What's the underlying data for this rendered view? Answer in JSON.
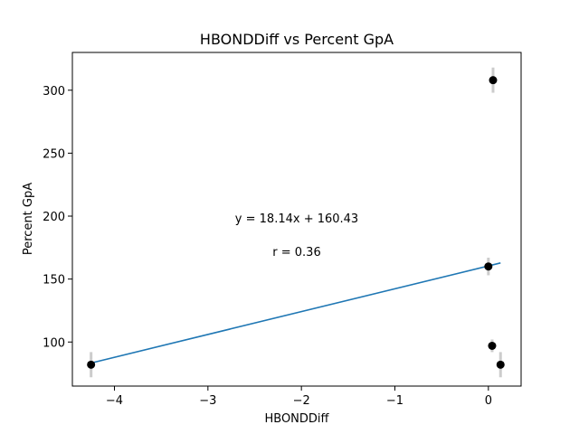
{
  "chart_data": {
    "type": "scatter",
    "title": "HBONDDiff vs Percent GpA",
    "xlabel": "HBONDDiff",
    "ylabel": "Percent GpA",
    "xlim": [
      -4.45,
      0.35
    ],
    "ylim": [
      65,
      330
    ],
    "grid": false,
    "x_ticks": [
      {
        "value": -4,
        "label": "−4"
      },
      {
        "value": -3,
        "label": "−3"
      },
      {
        "value": -2,
        "label": "−2"
      },
      {
        "value": -1,
        "label": "−1"
      },
      {
        "value": 0,
        "label": "0"
      }
    ],
    "y_ticks": [
      {
        "value": 100,
        "label": "100"
      },
      {
        "value": 150,
        "label": "150"
      },
      {
        "value": 200,
        "label": "200"
      },
      {
        "value": 250,
        "label": "250"
      },
      {
        "value": 300,
        "label": "300"
      }
    ],
    "points": [
      {
        "x": -4.25,
        "y": 82,
        "err": 10
      },
      {
        "x": 0.0,
        "y": 160,
        "err": 7
      },
      {
        "x": 0.05,
        "y": 308,
        "err": 10
      },
      {
        "x": 0.04,
        "y": 97,
        "err": 5
      },
      {
        "x": 0.13,
        "y": 82,
        "err": 10
      }
    ],
    "fit_line": {
      "slope": 18.14,
      "intercept": 160.43,
      "x_range": [
        -4.25,
        0.13
      ]
    },
    "annotations": {
      "equation": "y = 18.14x + 160.43",
      "r_value": "r = 0.36"
    },
    "colors": {
      "points": "#000000",
      "error_bars": "#cccccc",
      "fit_line": "#1f77b4"
    }
  }
}
